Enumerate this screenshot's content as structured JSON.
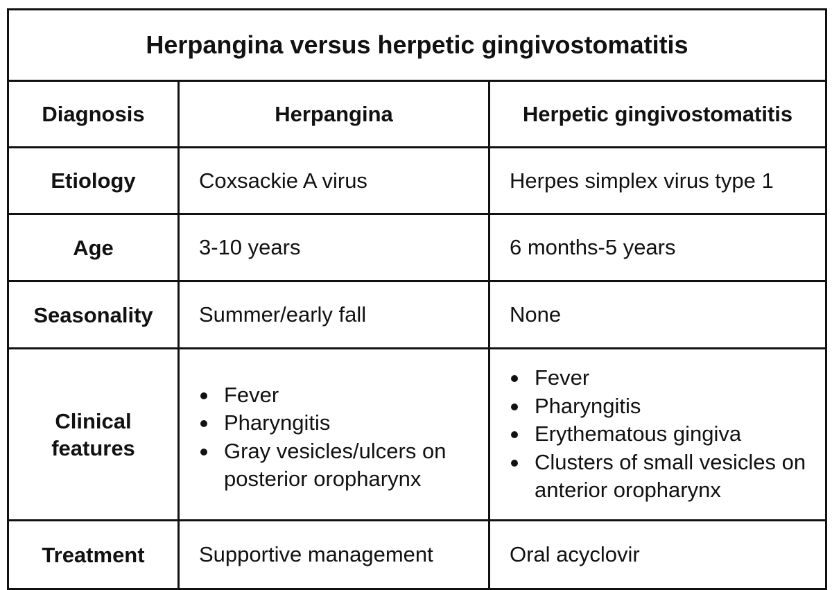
{
  "title": "Herpangina versus herpetic gingivostomatitis",
  "header": {
    "diagnosis": "Diagnosis",
    "herpangina": "Herpangina",
    "herpetic": "Herpetic gingivostomatitis"
  },
  "rows": {
    "etiology": {
      "label": "Etiology",
      "herpangina": "Coxsackie A virus",
      "herpetic": "Herpes simplex virus type 1"
    },
    "age": {
      "label": "Age",
      "herpangina": "3-10 years",
      "herpetic": "6 months-5 years"
    },
    "seasonality": {
      "label": "Seasonality",
      "herpangina": "Summer/early fall",
      "herpetic": "None"
    },
    "clinical": {
      "label_line1": "Clinical",
      "label_line2": "features",
      "herpangina": [
        "Fever",
        "Pharyngitis",
        "Gray vesicles/ulcers on posterior oropharynx"
      ],
      "herpetic": [
        "Fever",
        "Pharyngitis",
        "Erythematous gingiva",
        "Clusters of small vesicles on anterior oropharynx"
      ]
    },
    "treatment": {
      "label": "Treatment",
      "herpangina": "Supportive management",
      "herpetic": "Oral acyclovir"
    }
  }
}
